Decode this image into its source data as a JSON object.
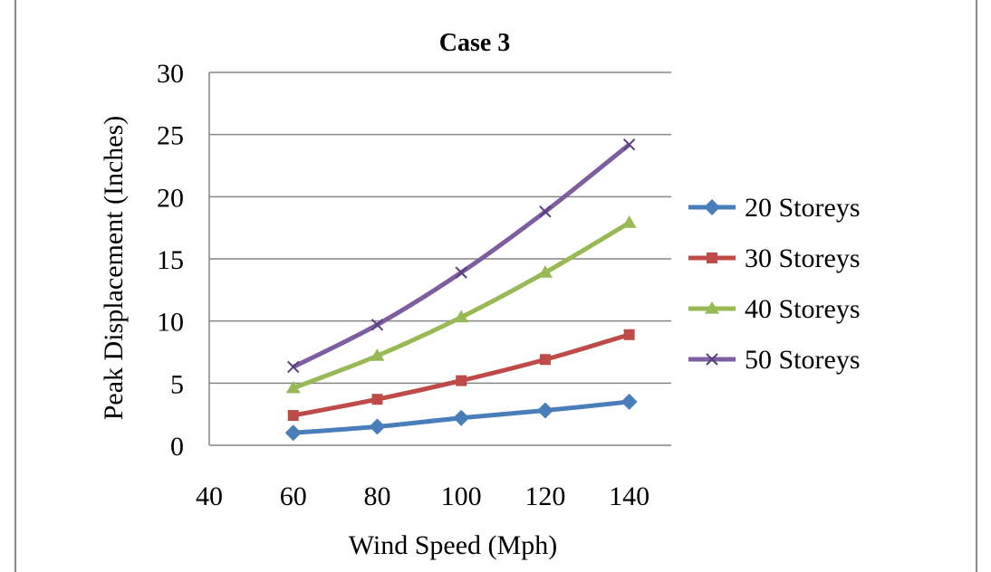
{
  "chart_data": {
    "type": "line",
    "title": "Case 3",
    "xlabel": "Wind Speed (Mph)",
    "ylabel": "Peak  Displacement  (Inches)",
    "xlim": [
      40,
      150
    ],
    "ylim": [
      0,
      30
    ],
    "xticks": [
      40,
      60,
      80,
      100,
      120,
      140
    ],
    "yticks": [
      0,
      5,
      10,
      15,
      20,
      25,
      30
    ],
    "grid": "horizontal",
    "legend_position": "right",
    "x": [
      60,
      80,
      100,
      120,
      140
    ],
    "series": [
      {
        "name": "20 Storeys",
        "values": [
          1.0,
          1.5,
          2.2,
          2.8,
          3.5
        ],
        "color": "#4a7ebb",
        "marker": "diamond"
      },
      {
        "name": "30 Storeys",
        "values": [
          2.4,
          3.7,
          5.2,
          6.9,
          8.9
        ],
        "color": "#be4b48",
        "marker": "square"
      },
      {
        "name": "40 Storeys",
        "values": [
          4.6,
          7.2,
          10.3,
          13.9,
          17.9
        ],
        "color": "#98b954",
        "marker": "triangle"
      },
      {
        "name": "50 Storeys",
        "values": [
          6.3,
          9.7,
          13.9,
          18.8,
          24.2
        ],
        "color": "#7d5fa0",
        "marker": "x"
      }
    ]
  }
}
